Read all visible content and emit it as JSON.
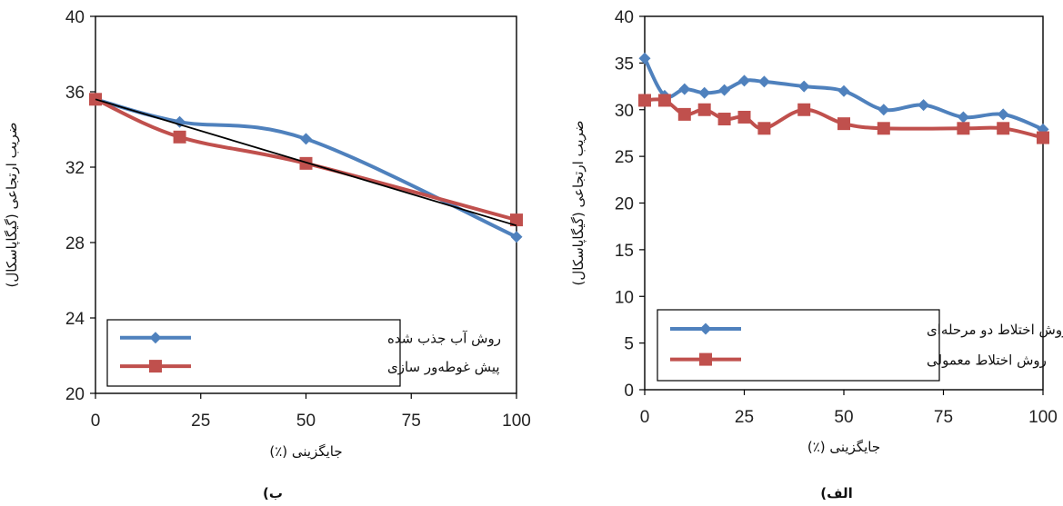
{
  "chart_data": [
    {
      "type": "line",
      "caption": "ب)",
      "xlabel": "جایگزینی (٪)",
      "ylabel": "ضریب ارتجاعی (گیگاپاسکال)",
      "xlim": [
        0,
        100
      ],
      "ylim": [
        20,
        40
      ],
      "xticks": [
        "0",
        "25",
        "50",
        "75",
        "100"
      ],
      "yticks": [
        "20",
        "24",
        "28",
        "32",
        "36",
        "40"
      ],
      "xtick_values": [
        0,
        25,
        50,
        75,
        100
      ],
      "ytick_values": [
        20,
        24,
        28,
        32,
        36,
        40
      ],
      "legend_position": "bottom-left",
      "series": [
        {
          "name": "روش آب جذب شده",
          "marker": "diamond",
          "color": "#4F81BD",
          "x": [
            0,
            20,
            50,
            100
          ],
          "y": [
            35.6,
            34.4,
            33.5,
            28.3
          ]
        },
        {
          "name": "پیش غوطه‌ور سازی",
          "marker": "square",
          "color": "#C0504D",
          "x": [
            0,
            20,
            50,
            100
          ],
          "y": [
            35.6,
            33.6,
            32.2,
            29.2
          ]
        }
      ],
      "trendline": {
        "color": "#000000",
        "x": [
          0,
          100
        ],
        "y": [
          35.6,
          28.9
        ]
      }
    },
    {
      "type": "line",
      "caption": "الف)",
      "xlabel": "جایگزینی (٪)",
      "ylabel": "ضریب ارتجاعی (گیگاپاسکال)",
      "xlim": [
        0,
        100
      ],
      "ylim": [
        0,
        40
      ],
      "xticks": [
        "0",
        "25",
        "50",
        "75",
        "100"
      ],
      "yticks": [
        "0",
        "5",
        "10",
        "15",
        "20",
        "25",
        "30",
        "35",
        "40"
      ],
      "xtick_values": [
        0,
        25,
        50,
        75,
        100
      ],
      "ytick_values": [
        0,
        5,
        10,
        15,
        20,
        25,
        30,
        35,
        40
      ],
      "legend_position": "bottom-left",
      "series": [
        {
          "name": "روش اختلاط دو مرحله‌ای",
          "marker": "diamond",
          "color": "#4F81BD",
          "x": [
            0,
            5,
            10,
            15,
            20,
            25,
            30,
            40,
            50,
            60,
            70,
            80,
            90,
            100
          ],
          "y": [
            35.5,
            31.5,
            32.2,
            31.8,
            32.1,
            33.1,
            33.0,
            32.5,
            32.0,
            30.0,
            30.5,
            29.2,
            29.5,
            27.9
          ]
        },
        {
          "name": "روش اختلاط معمولی",
          "marker": "square",
          "color": "#C0504D",
          "x": [
            0,
            5,
            10,
            15,
            20,
            25,
            30,
            40,
            50,
            60,
            80,
            90,
            100
          ],
          "y": [
            31.0,
            31.0,
            29.5,
            30.0,
            29.0,
            29.2,
            28.0,
            30.0,
            28.5,
            28.0,
            28.0,
            28.0,
            27.0
          ]
        }
      ]
    }
  ]
}
